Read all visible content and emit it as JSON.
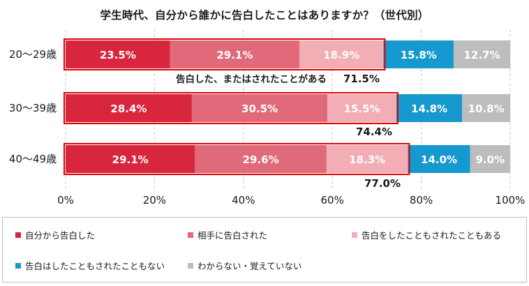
{
  "chart_title": "学生時代、自分から誰かに告白したことはありますか？（世代別）",
  "colors": {
    "series": [
      "#d7263d",
      "#e0697a",
      "#f2adb5",
      "#1599cf",
      "#bdbdbd"
    ],
    "highlight_border": "#e00000",
    "label_on_dark": "#ffffff"
  },
  "chart_data": {
    "type": "bar",
    "orientation": "horizontal",
    "stacked": true,
    "categories": [
      "20～29歳",
      "30～39歳",
      "40～49歳"
    ],
    "series": [
      {
        "name": "自分から告白した",
        "values": [
          23.5,
          28.4,
          29.1
        ],
        "labels": [
          "23.5%",
          "28.4%",
          "29.1%"
        ]
      },
      {
        "name": "相手に告白された",
        "values": [
          29.1,
          30.5,
          29.6
        ],
        "labels": [
          "29.1%",
          "30.5%",
          "29.6%"
        ]
      },
      {
        "name": "告白をしたこともされたこともある",
        "values": [
          18.9,
          15.5,
          18.3
        ],
        "labels": [
          "18.9%",
          "15.5%",
          "18.3%"
        ]
      },
      {
        "name": "告白はしたこともされたこともない",
        "values": [
          15.8,
          14.8,
          14.0
        ],
        "labels": [
          "15.8%",
          "14.8%",
          "14.0%"
        ]
      },
      {
        "name": "わからない・覚えていない",
        "values": [
          12.7,
          10.8,
          9.0
        ],
        "labels": [
          "12.7%",
          "10.8%",
          "9.0%"
        ]
      }
    ],
    "totals_highlighted": {
      "label_prefix": "告白した、またはされたことがある",
      "values": [
        71.5,
        74.4,
        77.0
      ],
      "labels": [
        "71.5%",
        "74.4%",
        "77.0%"
      ]
    },
    "xlim": [
      0,
      100
    ],
    "x_ticks": [
      "0%",
      "20%",
      "40%",
      "60%",
      "80%",
      "100%"
    ],
    "grid": "vertical dashed",
    "legend_position": "bottom"
  }
}
